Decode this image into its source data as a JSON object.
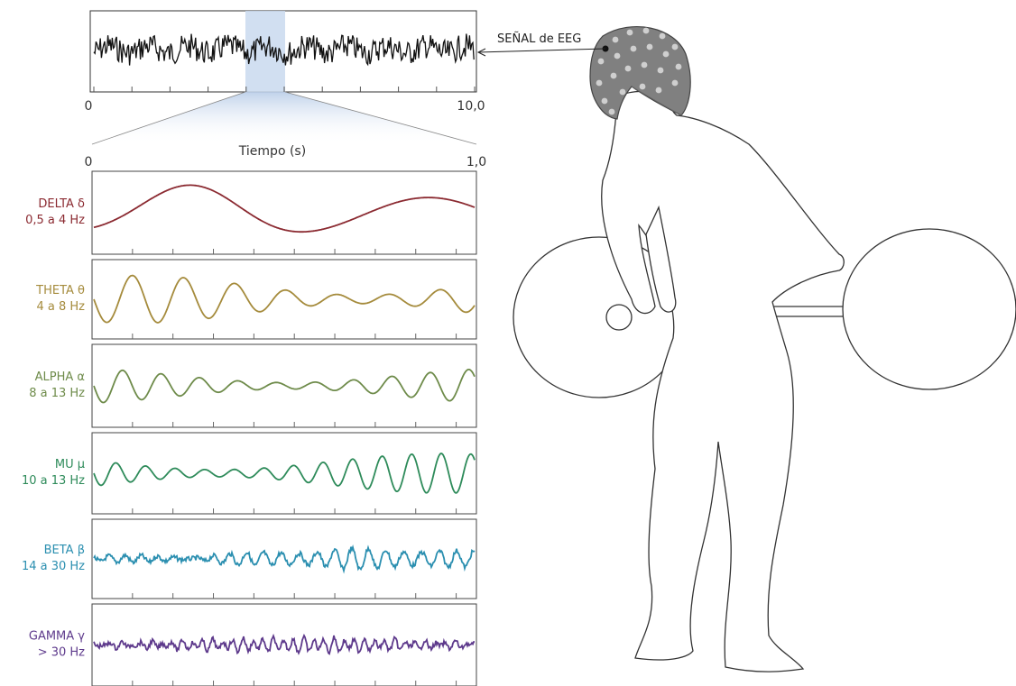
{
  "eeg_overview": {
    "start": "0",
    "end": "10,0"
  },
  "zoom": {
    "start": "0",
    "end": "1,0",
    "axis_label": "Tiempo (s)"
  },
  "callout": {
    "label": "SEÑAL de EEG"
  },
  "bands": [
    {
      "name": "DELTA δ",
      "range": "0,5 a 4 Hz",
      "color": "#8b2a31"
    },
    {
      "name": "THETA θ",
      "range": "4 a 8 Hz",
      "color": "#a58b3c"
    },
    {
      "name": "ALPHA α",
      "range": "8 a 13 Hz",
      "color": "#6e8b4a"
    },
    {
      "name": "MU μ",
      "range": "10 a 13 Hz",
      "color": "#2e8b5a"
    },
    {
      "name": "BETA β",
      "range": "14 a 30 Hz",
      "color": "#2b8fb0"
    },
    {
      "name": "GAMMA γ",
      "range": "> 30 Hz",
      "color": "#5e3a8c"
    }
  ]
}
